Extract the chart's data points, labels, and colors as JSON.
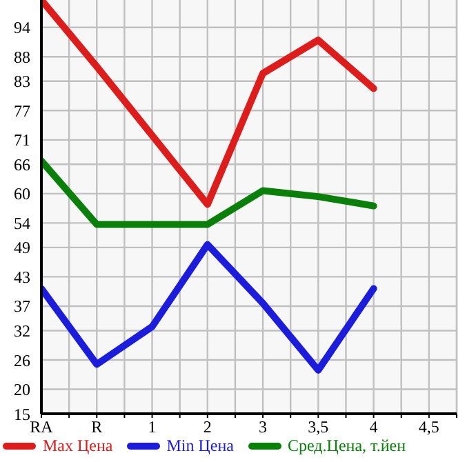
{
  "chart_data": {
    "type": "line",
    "categories": [
      "RA",
      "R",
      "1",
      "2",
      "3",
      "3,5",
      "4",
      "4,5"
    ],
    "series": [
      {
        "name": "Max Цена",
        "color": "#dd1c1c",
        "values": [
          99.6,
          86.0,
          71.9,
          57.8,
          84.6,
          91.4,
          81.5,
          null
        ]
      },
      {
        "name": "Min Цена",
        "color": "#1c1cdd",
        "values": [
          40.6,
          25.1,
          32.8,
          49.6,
          37.6,
          23.9,
          40.6,
          null
        ]
      },
      {
        "name": "Сред.Цена, т.йен",
        "color": "#0a800a",
        "values": [
          66.7,
          53.7,
          53.7,
          53.7,
          60.6,
          59.4,
          57.5,
          null
        ]
      }
    ],
    "ylim": [
      15,
      99.6
    ],
    "yticks": [
      15,
      20,
      26,
      32,
      37,
      43,
      49,
      54,
      60,
      66,
      71,
      77,
      83,
      88,
      94
    ],
    "grid": true,
    "legend": "bottom",
    "marker": "none",
    "line_style": "solid"
  }
}
